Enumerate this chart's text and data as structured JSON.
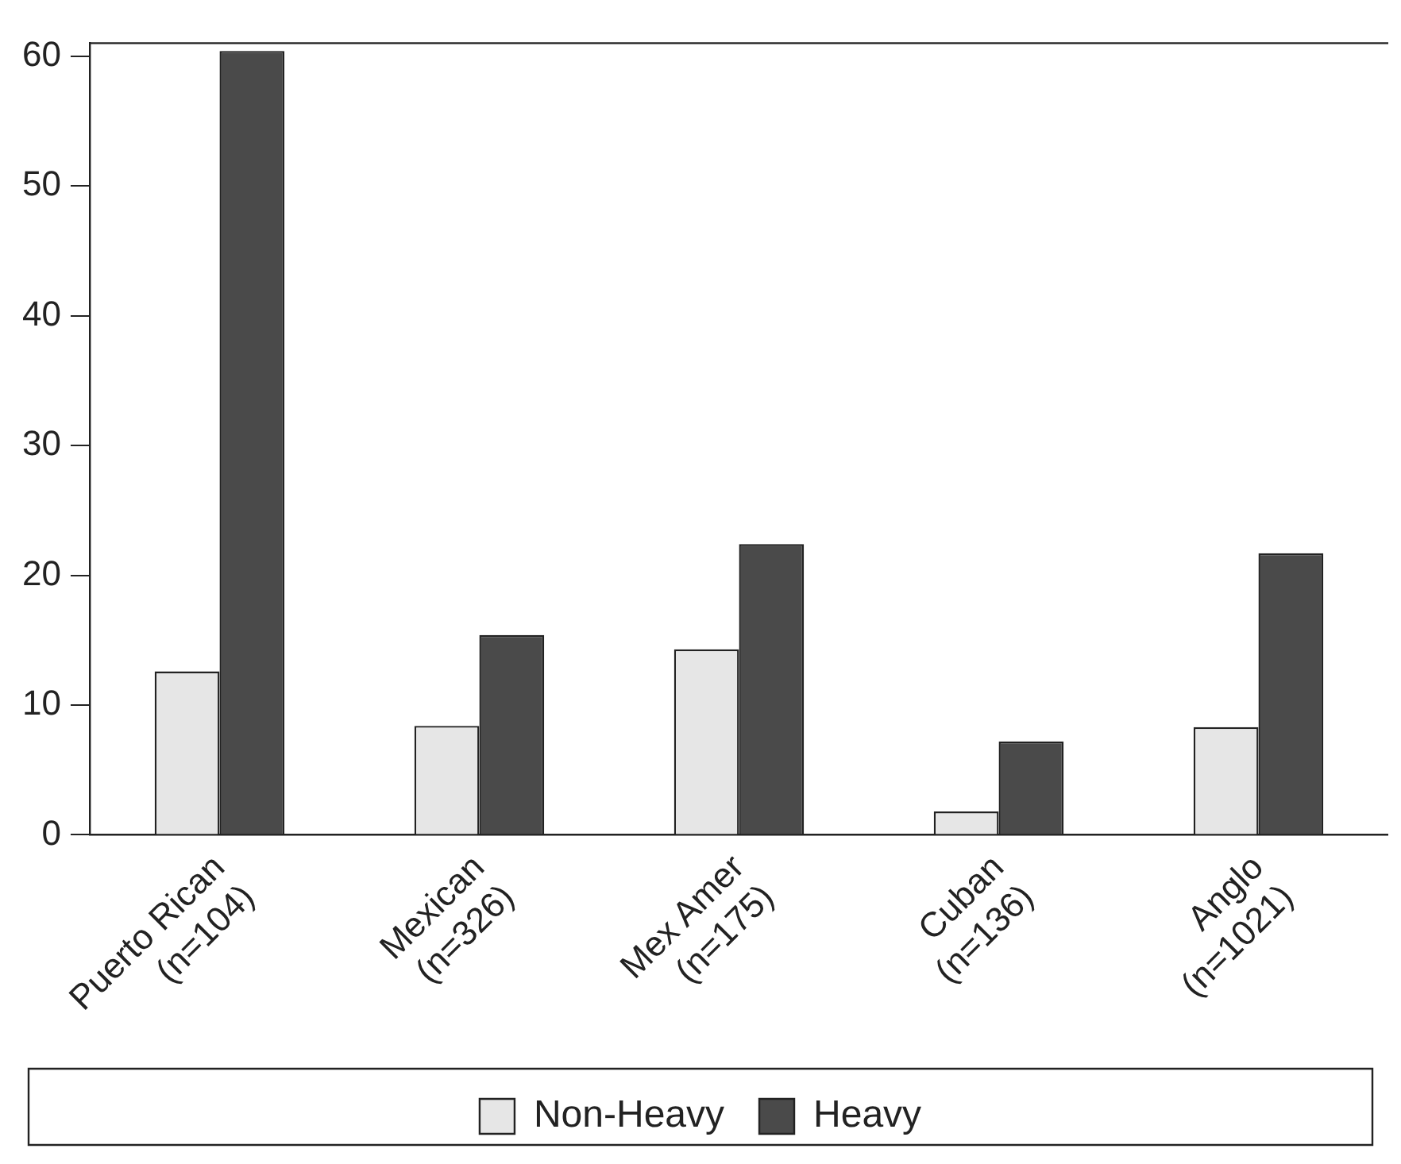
{
  "chart_data": {
    "type": "bar",
    "categories": [
      "Puerto Rican\n(n=104)",
      "Mexican\n(n=326)",
      "Mex Amer\n(n=175)",
      "Cuban\n(n=136)",
      "Anglo\n(n=1021)"
    ],
    "series": [
      {
        "name": "Non-Heavy",
        "color": "#e6e6e6",
        "values": [
          12.6,
          8.4,
          14.3,
          1.8,
          8.3
        ]
      },
      {
        "name": "Heavy",
        "color": "#4a4a4a",
        "values": [
          60.4,
          15.4,
          22.4,
          7.2,
          21.7
        ]
      }
    ],
    "ylim": [
      0,
      61
    ],
    "yticks": [
      0,
      10,
      20,
      30,
      40,
      50,
      60
    ],
    "grid": false,
    "legend": "bottom"
  }
}
